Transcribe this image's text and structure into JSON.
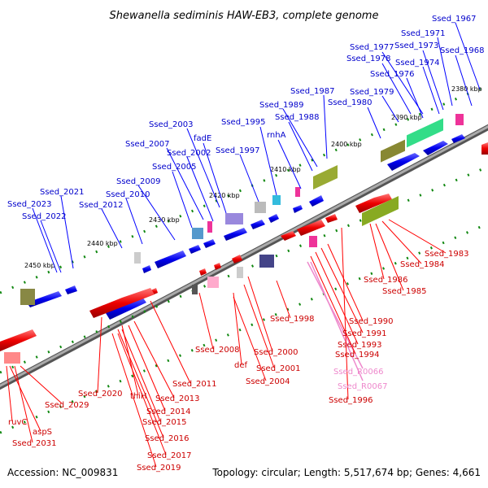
{
  "title": "Shewanella sediminis HAW-EB3, complete genome",
  "accession": "Accession: NC_009831",
  "topology": "Topology: circular; Length: 5,517,674 bp; Genes: 4,661",
  "colors": {
    "forward": "#0000ff",
    "reverse": "#ff0000",
    "rna": "#ee88cc",
    "backbone": "#888888",
    "tick": "#118811"
  },
  "kbp_ticks": [
    "2380 kbp",
    "2390 kbp",
    "2400 kbp",
    "2410 kbp",
    "2420 kbp",
    "2430 kbp",
    "2440 kbp",
    "2450 kbp"
  ],
  "forward_labels": [
    "Ssed_1967",
    "Ssed_1971",
    "Ssed_1968",
    "Ssed_1973",
    "Ssed_1977",
    "Ssed_1978",
    "Ssed_1974",
    "Ssed_1976",
    "Ssed_1987",
    "Ssed_1979",
    "Ssed_1980",
    "Ssed_1989",
    "Ssed_1988",
    "Ssed_2003",
    "Ssed_1995",
    "rnhA",
    "fadE",
    "Ssed_2007",
    "Ssed_2002",
    "Ssed_1997",
    "Ssed_2005",
    "Ssed_2009",
    "Ssed_2021",
    "Ssed_2010",
    "Ssed_2023",
    "Ssed_2012",
    "Ssed_2022"
  ],
  "reverse_labels": [
    "Ssed_1983",
    "Ssed_1984",
    "Ssed_1986",
    "Ssed_1985",
    "Ssed_1998",
    "Ssed_1990",
    "Ssed_1991",
    "Ssed_1993",
    "Ssed_2008",
    "Ssed_2000",
    "Ssed_1994",
    "def",
    "Ssed_2001",
    "Ssed_2004",
    "Ssed_2011",
    "Ssed_2020",
    "thiH",
    "Ssed_2013",
    "Ssed_2029",
    "Ssed_2014",
    "Ssed_2015",
    "ruvC",
    "aspS",
    "Ssed_2016",
    "Ssed_2031",
    "Ssed_2017",
    "Ssed_2019",
    "Ssed_1996"
  ],
  "rna_labels": [
    "Ssed_R0066",
    "Ssed_R0067"
  ]
}
